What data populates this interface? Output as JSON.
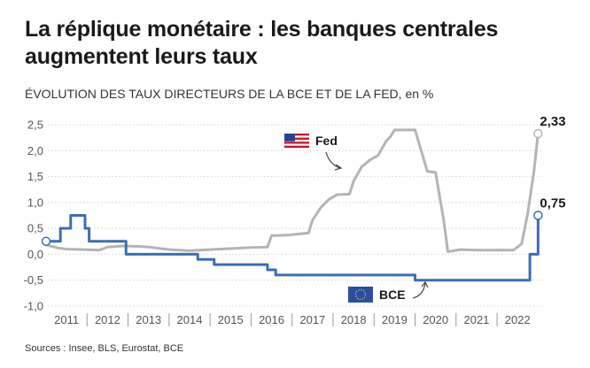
{
  "title": "La réplique monétaire : les banques centrales augmentent leurs taux",
  "subtitle": "ÉVOLUTION DES TAUX DIRECTEURS DE LA BCE ET DE LA FED,",
  "subtitle_unit": " en %",
  "source": "Sources : Insee, BLS, Eurostat, BCE",
  "chart_data": {
    "type": "line",
    "title": "La réplique monétaire : les banques centrales augmentent leurs taux",
    "ylim": [
      -1.0,
      2.5
    ],
    "yticks": [
      "2,5",
      "2,0",
      "1,5",
      "1,0",
      "0,5",
      "0,0",
      "-0,5",
      "-1,0"
    ],
    "ytick_values": [
      2.5,
      2.0,
      1.5,
      1.0,
      0.5,
      0.0,
      -0.5,
      -1.0
    ],
    "xlim": [
      2010.5,
      2022.6
    ],
    "xticks": [
      "2011",
      "2012",
      "2013",
      "2014",
      "2015",
      "2016",
      "2017",
      "2018",
      "2019",
      "2020",
      "2021",
      "2022"
    ],
    "xtick_values": [
      2011,
      2012,
      2013,
      2014,
      2015,
      2016,
      2017,
      2018,
      2019,
      2020,
      2021,
      2022
    ],
    "grid": true,
    "series": [
      {
        "name": "Fed",
        "color": "#b4b4b4",
        "step": false,
        "end_label": "2,33",
        "icon": "us-flag-icon",
        "points": [
          [
            2010.5,
            0.18
          ],
          [
            2010.8,
            0.12
          ],
          [
            2011.0,
            0.1
          ],
          [
            2011.4,
            0.09
          ],
          [
            2011.8,
            0.08
          ],
          [
            2012.0,
            0.14
          ],
          [
            2012.4,
            0.16
          ],
          [
            2012.8,
            0.15
          ],
          [
            2013.0,
            0.14
          ],
          [
            2013.5,
            0.09
          ],
          [
            2014.0,
            0.07
          ],
          [
            2014.5,
            0.09
          ],
          [
            2015.0,
            0.11
          ],
          [
            2015.5,
            0.13
          ],
          [
            2015.9,
            0.14
          ],
          [
            2016.0,
            0.36
          ],
          [
            2016.4,
            0.37
          ],
          [
            2016.9,
            0.41
          ],
          [
            2017.0,
            0.66
          ],
          [
            2017.2,
            0.9
          ],
          [
            2017.4,
            1.06
          ],
          [
            2017.6,
            1.15
          ],
          [
            2017.9,
            1.16
          ],
          [
            2018.0,
            1.41
          ],
          [
            2018.2,
            1.69
          ],
          [
            2018.4,
            1.82
          ],
          [
            2018.6,
            1.91
          ],
          [
            2018.8,
            2.19
          ],
          [
            2018.9,
            2.27
          ],
          [
            2019.0,
            2.4
          ],
          [
            2019.3,
            2.4
          ],
          [
            2019.5,
            2.4
          ],
          [
            2019.6,
            2.13
          ],
          [
            2019.8,
            1.6
          ],
          [
            2020.0,
            1.58
          ],
          [
            2020.2,
            0.65
          ],
          [
            2020.3,
            0.05
          ],
          [
            2020.6,
            0.09
          ],
          [
            2021.0,
            0.08
          ],
          [
            2021.5,
            0.08
          ],
          [
            2021.9,
            0.08
          ],
          [
            2022.1,
            0.2
          ],
          [
            2022.25,
            0.8
          ],
          [
            2022.4,
            1.6
          ],
          [
            2022.5,
            2.33
          ]
        ]
      },
      {
        "name": "BCE",
        "color": "#3a6fb5",
        "step": true,
        "end_label": "0,75",
        "icon": "eu-flag-icon",
        "points": [
          [
            2010.5,
            0.25
          ],
          [
            2010.85,
            0.5
          ],
          [
            2011.1,
            0.75
          ],
          [
            2011.45,
            0.5
          ],
          [
            2011.55,
            0.25
          ],
          [
            2012.45,
            0.0
          ],
          [
            2014.2,
            -0.1
          ],
          [
            2014.6,
            -0.2
          ],
          [
            2015.9,
            -0.3
          ],
          [
            2016.1,
            -0.4
          ],
          [
            2019.5,
            -0.5
          ],
          [
            2022.3,
            0.0
          ],
          [
            2022.5,
            0.75
          ]
        ]
      }
    ]
  }
}
